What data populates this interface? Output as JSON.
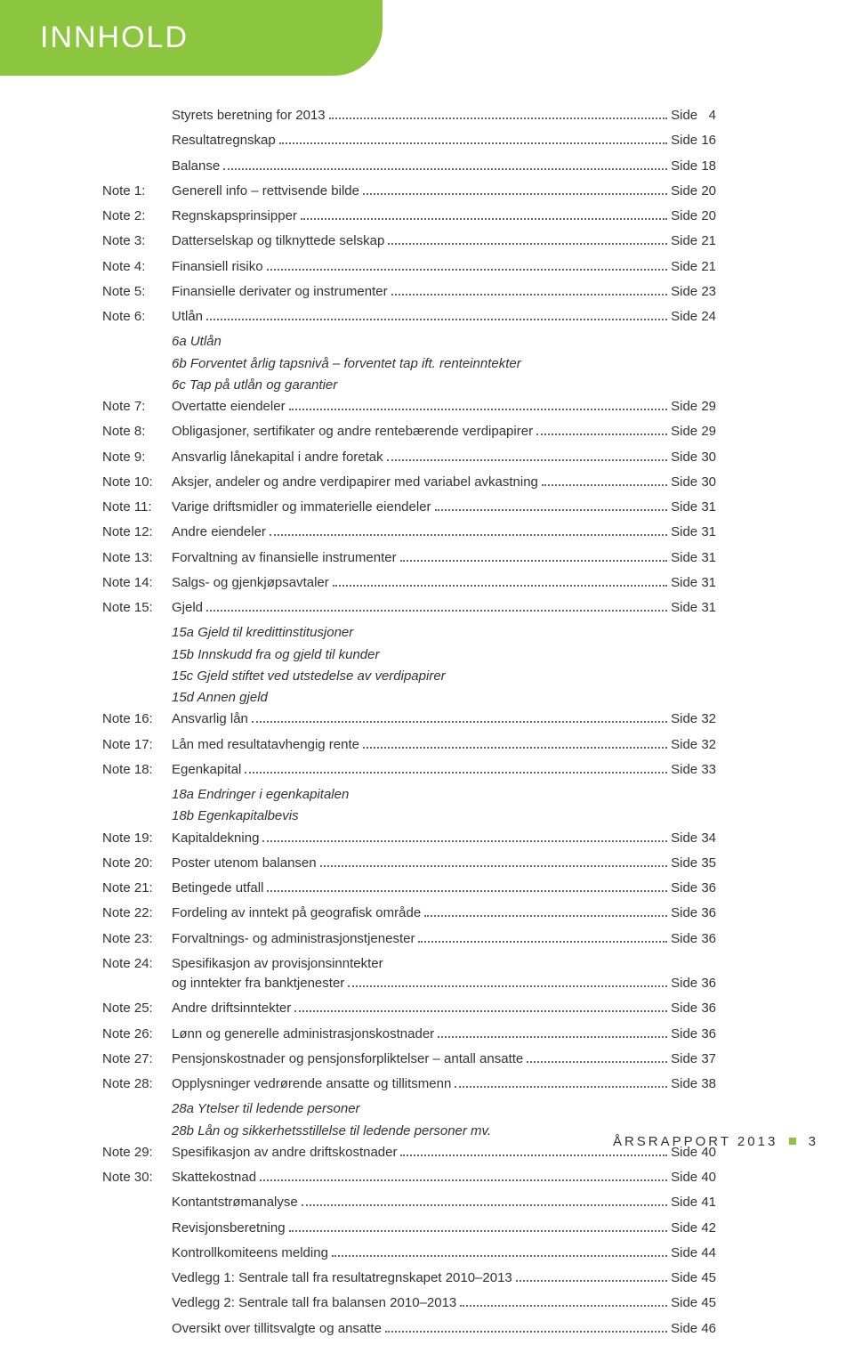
{
  "colors": {
    "accent": "#8cc63f",
    "text": "#333333",
    "bg": "#ffffff"
  },
  "header": {
    "title": "INNHOLD"
  },
  "toc": [
    {
      "label": "",
      "title": "Styrets beretning for 2013",
      "page": "Side   4"
    },
    {
      "label": "",
      "title": "Resultatregnskap",
      "page": "Side 16"
    },
    {
      "label": "",
      "title": "Balanse",
      "page": "Side 18"
    },
    {
      "label": "Note 1:",
      "title": "Generell info – rettvisende bilde",
      "page": "Side 20"
    },
    {
      "label": "Note 2:",
      "title": "Regnskapsprinsipper",
      "page": "Side 20"
    },
    {
      "label": "Note 3:",
      "title": "Datterselskap og tilknyttede selskap",
      "page": "Side 21"
    },
    {
      "label": "Note 4:",
      "title": "Finansiell risiko",
      "page": "Side 21"
    },
    {
      "label": "Note 5:",
      "title": "Finansielle derivater og instrumenter",
      "page": "Side 23"
    },
    {
      "label": "Note 6:",
      "title": "Utlån",
      "page": "Side 24",
      "subs": [
        "6a Utlån",
        "6b Forventet årlig tapsnivå – forventet tap ift. renteinntekter",
        "6c Tap på utlån og garantier"
      ]
    },
    {
      "label": "Note 7:",
      "title": "Overtatte eiendeler",
      "page": "Side 29"
    },
    {
      "label": "Note 8:",
      "title": "Obligasjoner, sertifikater og andre rentebærende verdipapirer",
      "page": "Side 29"
    },
    {
      "label": "Note 9:",
      "title": "Ansvarlig lånekapital i andre foretak",
      "page": "Side 30"
    },
    {
      "label": "Note 10:",
      "title": "Aksjer, andeler og andre verdipapirer med variabel avkastning",
      "page": "Side 30"
    },
    {
      "label": "Note 11:",
      "title": "Varige driftsmidler og immaterielle eiendeler",
      "page": "Side 31"
    },
    {
      "label": "Note 12:",
      "title": "Andre eiendeler",
      "page": "Side 31"
    },
    {
      "label": "Note 13:",
      "title": "Forvaltning av finansielle instrumenter",
      "page": "Side 31"
    },
    {
      "label": "Note 14:",
      "title": "Salgs- og gjenkjøpsavtaler",
      "page": "Side 31"
    },
    {
      "label": "Note 15:",
      "title": "Gjeld",
      "page": "Side 31",
      "subs": [
        "15a Gjeld til kredittinstitusjoner",
        "15b Innskudd fra og gjeld til kunder",
        "15c Gjeld stiftet ved utstedelse av verdipapirer",
        "15d Annen gjeld"
      ]
    },
    {
      "label": "Note 16:",
      "title": "Ansvarlig lån",
      "page": "Side 32"
    },
    {
      "label": "Note 17:",
      "title": "Lån med resultatavhengig rente",
      "page": "Side 32"
    },
    {
      "label": "Note 18:",
      "title": "Egenkapital",
      "page": "Side 33",
      "subs": [
        "18a Endringer i egenkapitalen",
        "18b Egenkapitalbevis"
      ]
    },
    {
      "label": "Note 19:",
      "title": "Kapitaldekning",
      "page": "Side 34"
    },
    {
      "label": "Note 20:",
      "title": "Poster utenom balansen",
      "page": "Side 35"
    },
    {
      "label": "Note 21:",
      "title": "Betingede utfall",
      "page": "Side 36"
    },
    {
      "label": "Note 22:",
      "title": "Fordeling av inntekt på geografisk område",
      "page": "Side 36"
    },
    {
      "label": "Note 23:",
      "title": "Forvaltnings- og administrasjonstjenester",
      "page": "Side 36"
    },
    {
      "label": "Note 24:",
      "title": "Spesifikasjon av provisjonsinntekter",
      "title2": "og inntekter fra banktjenester",
      "page": "Side 36"
    },
    {
      "label": "Note 25:",
      "title": "Andre driftsinntekter",
      "page": "Side 36"
    },
    {
      "label": "Note 26:",
      "title": "Lønn og generelle administrasjonskostnader",
      "page": "Side 36"
    },
    {
      "label": "Note 27:",
      "title": "Pensjonskostnader og pensjonsforpliktelser – antall ansatte",
      "page": "Side 37"
    },
    {
      "label": "Note 28:",
      "title": "Opplysninger vedrørende ansatte og tillitsmenn",
      "page": "Side 38",
      "subs": [
        "28a Ytelser til ledende personer",
        "28b Lån og sikkerhetsstillelse til ledende personer mv."
      ]
    },
    {
      "label": "Note 29:",
      "title": "Spesifikasjon av andre driftskostnader",
      "page": "Side 40"
    },
    {
      "label": "Note 30:",
      "title": "Skattekostnad",
      "page": "Side 40"
    },
    {
      "label": "",
      "title": "Kontantstrømanalyse",
      "page": "Side 41"
    },
    {
      "label": "",
      "title": "Revisjonsberetning",
      "page": "Side 42"
    },
    {
      "label": "",
      "title": "Kontrollkomiteens melding",
      "page": "Side 44"
    },
    {
      "label": "",
      "title": "Vedlegg 1: Sentrale tall fra resultatregnskapet 2010–2013",
      "page": "Side 45"
    },
    {
      "label": "",
      "title": "Vedlegg 2: Sentrale tall fra balansen 2010–2013",
      "page": "Side 45"
    },
    {
      "label": "",
      "title": "Oversikt over tillitsvalgte og ansatte",
      "page": "Side 46"
    }
  ],
  "footer": {
    "text": "ÅRSRAPPORT 2013",
    "page": "3"
  }
}
